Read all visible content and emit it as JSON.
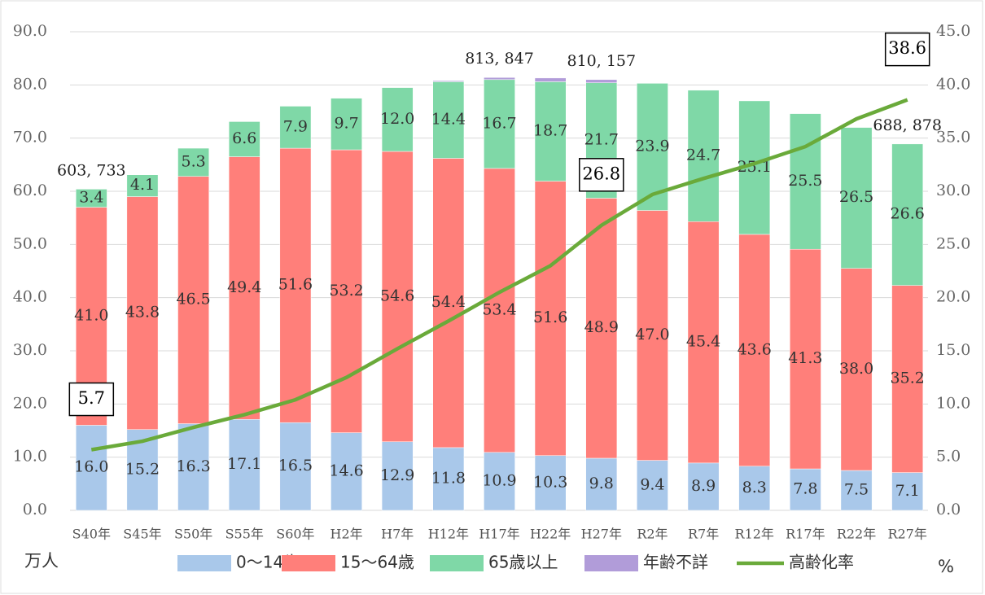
{
  "chart_data": {
    "type": "bar",
    "categories": [
      "S40年",
      "S45年",
      "S50年",
      "S55年",
      "S60年",
      "H2年",
      "H7年",
      "H12年",
      "H17年",
      "H22年",
      "H27年",
      "R2年",
      "R7年",
      "R12年",
      "R17年",
      "R22年",
      "R27年"
    ],
    "series": [
      {
        "name": "0～14歳",
        "color": "#a9c8ea",
        "values": [
          16.0,
          15.2,
          16.3,
          17.1,
          16.5,
          14.6,
          12.9,
          11.8,
          10.9,
          10.3,
          9.8,
          9.4,
          8.9,
          8.3,
          7.8,
          7.5,
          7.1
        ],
        "value_labels": [
          "16.0",
          "15.2",
          "16.3",
          "17.1",
          "16.5",
          "14.6",
          "12.9",
          "11.8",
          "10.9",
          "10.3",
          "9.8",
          "9.4",
          "8.9",
          "8.3",
          "7.8",
          "7.5",
          "7.1"
        ]
      },
      {
        "name": "15～64歳",
        "color": "#ff7f7a",
        "values": [
          41.0,
          43.8,
          46.5,
          49.4,
          51.6,
          53.2,
          54.6,
          54.4,
          53.4,
          51.6,
          48.9,
          47.0,
          45.4,
          43.6,
          41.3,
          38.0,
          35.2
        ],
        "value_labels": [
          "41.0",
          "43.8",
          "46.5",
          "49.4",
          "51.6",
          "53.2",
          "54.6",
          "54.4",
          "53.4",
          "51.6",
          "48.9",
          "47.0",
          "45.4",
          "43.6",
          "41.3",
          "38.0",
          "35.2"
        ]
      },
      {
        "name": "65歳以上",
        "color": "#7fd8a7",
        "values": [
          3.4,
          4.1,
          5.3,
          6.6,
          7.9,
          9.7,
          12.0,
          14.4,
          16.7,
          18.7,
          21.7,
          23.9,
          24.7,
          25.1,
          25.5,
          26.5,
          26.6
        ],
        "value_labels": [
          "3.4",
          "4.1",
          "5.3",
          "6.6",
          "7.9",
          "9.7",
          "12.0",
          "14.4",
          "16.7",
          "18.7",
          "21.7",
          "23.9",
          "24.7",
          "25.1",
          "25.5",
          "26.5",
          "26.6"
        ]
      },
      {
        "name": "年齢不詳",
        "color": "#b19cd9",
        "values": [
          null,
          null,
          null,
          null,
          null,
          null,
          null,
          0.2,
          0.4,
          0.7,
          0.6,
          null,
          null,
          null,
          null,
          null,
          null
        ]
      },
      {
        "name": "高齢化率",
        "type": "line",
        "axis": "y2",
        "color": "#6aaa3a",
        "values": [
          5.7,
          6.5,
          7.8,
          9.0,
          10.4,
          12.5,
          15.2,
          17.8,
          20.5,
          23.0,
          26.8,
          29.7,
          31.2,
          32.6,
          34.2,
          36.8,
          38.6
        ],
        "value_labels": [
          "5.7",
          null,
          null,
          null,
          null,
          null,
          null,
          null,
          null,
          null,
          "26.8",
          null,
          null,
          null,
          null,
          null,
          "38.6"
        ]
      }
    ],
    "annotations": [
      {
        "category": "S40年",
        "text": "603, 733"
      },
      {
        "category": "H17年",
        "text": "813, 847"
      },
      {
        "category": "H27年",
        "text": "810, 157"
      },
      {
        "category": "R27年",
        "text": "688, 878"
      }
    ],
    "ylabel": "万人",
    "y2label": "%",
    "ylim": [
      0,
      90
    ],
    "yticks": [
      {
        "value": 0,
        "label": "0.0"
      },
      {
        "value": 10,
        "label": "10.0"
      },
      {
        "value": 20,
        "label": "20.0"
      },
      {
        "value": 30,
        "label": "30.0"
      },
      {
        "value": 40,
        "label": "40.0"
      },
      {
        "value": 50,
        "label": "50.0"
      },
      {
        "value": 60,
        "label": "60.0"
      },
      {
        "value": 70,
        "label": "70.0"
      },
      {
        "value": 80,
        "label": "80.0"
      },
      {
        "value": 90,
        "label": "90.0"
      }
    ],
    "y2lim": [
      0,
      45
    ],
    "y2ticks": [
      {
        "value": 0,
        "label": "0.0"
      },
      {
        "value": 5,
        "label": "5.0"
      },
      {
        "value": 10,
        "label": "10.0"
      },
      {
        "value": 15,
        "label": "15.0"
      },
      {
        "value": 20,
        "label": "20.0"
      },
      {
        "value": 25,
        "label": "25.0"
      },
      {
        "value": 30,
        "label": "30.0"
      },
      {
        "value": 35,
        "label": "35.0"
      },
      {
        "value": 40,
        "label": "40.0"
      },
      {
        "value": 45,
        "label": "45.0"
      }
    ],
    "grid": true,
    "legend": "bottom"
  }
}
